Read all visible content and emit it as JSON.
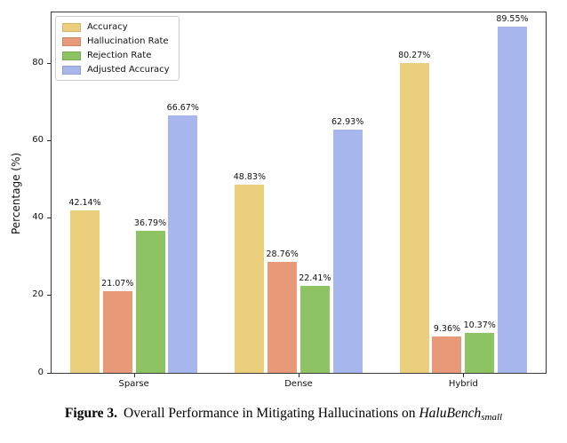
{
  "figure": {
    "caption": {
      "label_bold": "Figure 3.",
      "body": "Overall Performance in Mitigating Hallucinations on",
      "benchmark_italic": "HaluBench",
      "benchmark_subscript": "small"
    }
  },
  "chart_data": {
    "type": "bar",
    "title": "",
    "xlabel": "",
    "ylabel": "Percentage (%)",
    "ylim": [
      0,
      93.3
    ],
    "yticks": [
      0,
      20,
      40,
      60,
      80
    ],
    "grid": false,
    "legend_position": "upper-left",
    "categories": [
      "Sparse",
      "Dense",
      "Hybrid"
    ],
    "series": [
      {
        "name": "Accuracy",
        "color": "#ECCF7D",
        "values": [
          42.14,
          48.83,
          80.27
        ],
        "value_labels": [
          "42.14%",
          "48.83%",
          "80.27%"
        ]
      },
      {
        "name": "Hallucination Rate",
        "color": "#E89A78",
        "values": [
          21.07,
          28.76,
          9.36
        ],
        "value_labels": [
          "21.07%",
          "28.76%",
          "9.36%"
        ]
      },
      {
        "name": "Rejection Rate",
        "color": "#8EC363",
        "values": [
          36.79,
          22.41,
          10.37
        ],
        "value_labels": [
          "36.79%",
          "22.41%",
          "10.37%"
        ]
      },
      {
        "name": "Adjusted Accuracy",
        "color": "#A8B6EE",
        "values": [
          66.67,
          62.93,
          89.55
        ],
        "value_labels": [
          "66.67%",
          "62.93%",
          "89.55%"
        ]
      }
    ]
  }
}
